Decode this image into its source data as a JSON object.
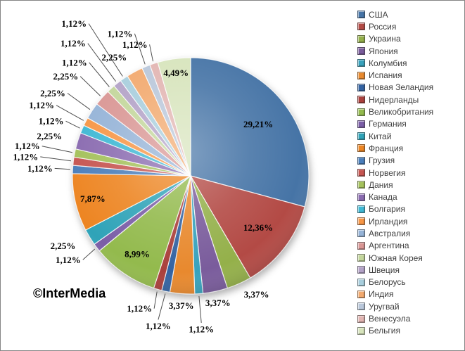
{
  "chart_data": {
    "type": "pie",
    "title": "",
    "legend_position": "right",
    "direction": "clockwise",
    "start_angle_deg": 0,
    "decimal_separator": ",",
    "categories": [
      "США",
      "Россия",
      "Украина",
      "Япония",
      "Колумбия",
      "Испания",
      "Новая Зеландия",
      "Нидерланды",
      "Великобритания",
      "Германия",
      "Китай",
      "Франция",
      "Грузия",
      "Норвегия",
      "Дания",
      "Канада",
      "Болгария",
      "Ирландия",
      "Австралия",
      "Аргентина",
      "Южная Корея",
      "Швеция",
      "Белорусь",
      "Индия",
      "Уругвай",
      "Венесуэла",
      "Бельгия"
    ],
    "values": [
      29.21,
      12.36,
      3.37,
      3.37,
      1.12,
      3.37,
      1.12,
      1.12,
      8.99,
      1.12,
      2.25,
      7.87,
      1.12,
      1.12,
      1.12,
      2.25,
      1.12,
      1.12,
      2.25,
      2.25,
      1.12,
      1.12,
      1.12,
      2.25,
      1.12,
      1.12,
      4.49
    ],
    "percent_labels": [
      "29,21%",
      "12,36%",
      "3,37%",
      "3,37%",
      "1,12%",
      "3,37%",
      "1,12%",
      "1,12%",
      "8,99%",
      "1,12%",
      "2,25%",
      "7,87%",
      "1,12%",
      "1,12%",
      "1,12%",
      "2,25%",
      "1,12%",
      "1,12%",
      "2,25%",
      "2,25%",
      "1,12%",
      "1,12%",
      "1,12%",
      "2,25%",
      "1,12%",
      "1,12%",
      "4,49%"
    ],
    "slice_colors": [
      "#4674A6",
      "#B34A45",
      "#94B04A",
      "#7A5C9C",
      "#38A2BC",
      "#E8892E",
      "#3463A2",
      "#AA403C",
      "#93BA4D",
      "#7B5EA7",
      "#2FA3B8",
      "#ED8522",
      "#4A7EBB",
      "#C65551",
      "#A4C15B",
      "#8A6BB0",
      "#3FB8D4",
      "#F79646",
      "#95B3D7",
      "#D99694",
      "#C3D69B",
      "#B3A2C7",
      "#A8CEDD",
      "#F2A96E",
      "#B9C7DA",
      "#E2B5B2",
      "#D7E4BC"
    ]
  },
  "watermark": {
    "text": "©InterMedia"
  }
}
